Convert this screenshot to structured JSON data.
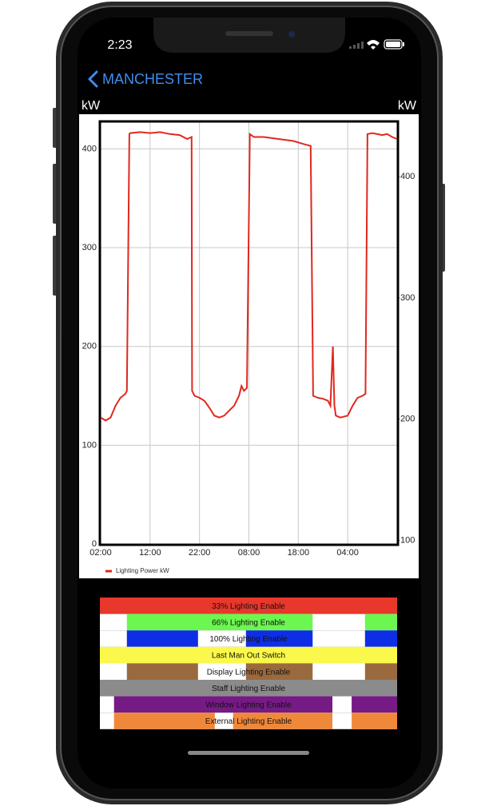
{
  "status_bar": {
    "time": "2:23"
  },
  "nav": {
    "back_label": "MANCHESTER"
  },
  "chart_data": {
    "type": "line",
    "y_axis_label": "kW",
    "y2_axis_label": "kW",
    "x": [
      0,
      1,
      2,
      3,
      4,
      5,
      5.3,
      5.8,
      6,
      8,
      10,
      12,
      14,
      16,
      17.5,
      18.4,
      18.5,
      19,
      20,
      21,
      22,
      23,
      24,
      25,
      26,
      27,
      28,
      28.5,
      29,
      29.6,
      30.2,
      31,
      33,
      36,
      39,
      41,
      42.5,
      43,
      44,
      45,
      46,
      46.5,
      47,
      47.3,
      47.6,
      48.5,
      50,
      51,
      52,
      53,
      53.6,
      54,
      55,
      57,
      58,
      59,
      60
    ],
    "series": [
      {
        "name": "Lighting Power kW",
        "color": "#e0281e",
        "values": [
          128,
          125,
          128,
          140,
          148,
          152,
          155,
          415,
          416,
          417,
          416,
          417,
          415,
          414,
          410,
          412,
          155,
          150,
          148,
          145,
          138,
          130,
          128,
          130,
          135,
          140,
          150,
          160,
          155,
          158,
          415,
          412,
          412,
          410,
          408,
          405,
          403,
          150,
          148,
          147,
          145,
          140,
          200,
          140,
          130,
          128,
          130,
          140,
          148,
          150,
          152,
          415,
          416,
          414,
          415,
          412,
          410
        ]
      }
    ],
    "xlim": [
      0,
      60
    ],
    "xticks": [
      {
        "value": 0,
        "label": "02:00"
      },
      {
        "value": 10,
        "label": "12:00"
      },
      {
        "value": 20,
        "label": "22:00"
      },
      {
        "value": 30,
        "label": "08:00"
      },
      {
        "value": 40,
        "label": "18:00"
      },
      {
        "value": 50,
        "label": "04:00"
      }
    ],
    "ylim": [
      0,
      427
    ],
    "yticks": [
      0,
      100,
      200,
      300,
      400
    ],
    "y2lim": [
      97,
      445
    ],
    "y2ticks": [
      100,
      200,
      300,
      400
    ],
    "grid": true,
    "legend": "bottom-left"
  },
  "bands": [
    {
      "name": "33% Lighting Enable",
      "color": "#e8372b",
      "on": [
        [
          0,
          60
        ]
      ]
    },
    {
      "name": "66% Lighting Enable",
      "color": "#6cf750",
      "on": [
        [
          5.3,
          42.9
        ],
        [
          53.5,
          60
        ]
      ]
    },
    {
      "name": "100% Lighting Enable",
      "color": "#0d2ee6",
      "on": [
        [
          5.3,
          19.7
        ],
        [
          29.4,
          42.9
        ],
        [
          53.5,
          60
        ]
      ]
    },
    {
      "name": "Last Man Out Switch",
      "color": "#fbf84c",
      "on": [
        [
          0,
          60
        ]
      ]
    },
    {
      "name": "Display Lighting Enable",
      "color": "#9a6a3e",
      "on": [
        [
          5.3,
          19.7
        ],
        [
          29.4,
          42.9
        ],
        [
          53.5,
          60
        ]
      ]
    },
    {
      "name": "Staff Lighting Enable",
      "color": "#8b8b8b",
      "on": [
        [
          0,
          60
        ]
      ]
    },
    {
      "name": "Window Lighting Enable",
      "color": "#761a86",
      "on": [
        [
          2.7,
          46.9
        ],
        [
          50.8,
          60
        ]
      ]
    },
    {
      "name": "External Lighting Enable",
      "color": "#f0883a",
      "on": [
        [
          2.7,
          23.1
        ],
        [
          26.8,
          46.9
        ],
        [
          50.8,
          60
        ]
      ]
    }
  ]
}
